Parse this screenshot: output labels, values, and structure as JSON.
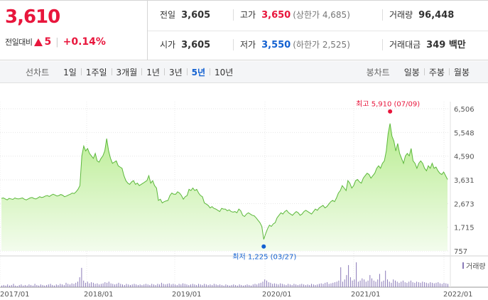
{
  "quote": {
    "current_price": "3,610",
    "change_label": "전일대비",
    "change_value": "5",
    "change_rate": "+0.14%",
    "prev_close_label": "전일",
    "prev_close": "3,605",
    "open_label": "시가",
    "open": "3,605",
    "high_label": "고가",
    "high": "3,650",
    "upper_limit": "(상한가 4,685)",
    "low_label": "저가",
    "low": "3,550",
    "lower_limit": "(하한가 2,525)",
    "volume_label": "거래량",
    "volume": "96,448",
    "amount_label": "거래대금",
    "amount": "349 백만"
  },
  "toolbar": {
    "line_chart_title": "선차트",
    "periods": [
      "1일",
      "1주일",
      "3개월",
      "1년",
      "3년",
      "5년",
      "10년"
    ],
    "active_period": "5년",
    "candle_chart_title": "봉차트",
    "candle_periods": [
      "일봉",
      "주봉",
      "월봉"
    ]
  },
  "chart_data": {
    "type": "area",
    "max_label": "최고 5,910 (07/09)",
    "min_label": "최저 1,225 (03/27)",
    "volume_legend": "거래량",
    "y_ticks": [
      "6,506",
      "5,548",
      "4,590",
      "3,631",
      "2,673",
      "1,715",
      "757"
    ],
    "y_tick_values": [
      6506,
      5548,
      4590,
      3631,
      2673,
      1715,
      757
    ],
    "x_ticks": [
      "2017/01",
      "2018/01",
      "2019/01",
      "2020/01",
      "2021/01",
      "2022/01"
    ],
    "ylim": [
      757,
      6506
    ],
    "colors": {
      "line": "#5cb83b",
      "fill_top": "#b7ec8e",
      "fill_bottom": "#f3fced",
      "max": "#e8163c",
      "min": "#1361d1",
      "volume": "#8a7ab8"
    },
    "series": [
      {
        "values": [
          2880,
          2900,
          2860,
          2820,
          2880,
          2860,
          2840,
          2900,
          2870,
          2860,
          2880,
          2900,
          2850,
          2820,
          2860,
          2900,
          2920,
          2880,
          2860,
          2900,
          2950,
          2920,
          2940,
          2980,
          3000,
          2960,
          3010,
          3050,
          3020,
          2980,
          3000,
          3040,
          3010,
          2950,
          2980,
          3020,
          3050,
          3100,
          3080,
          3150,
          3250,
          3400,
          4600,
          5000,
          4800,
          4900,
          4700,
          4600,
          4500,
          4700,
          4400,
          4350,
          4500,
          4600,
          4800,
          5300,
          4800,
          4500,
          4300,
          4350,
          4400,
          4200,
          4150,
          4100,
          3800,
          3600,
          3500,
          3450,
          3550,
          3600,
          3450,
          3500,
          3400,
          3450,
          3500,
          3550,
          3600,
          3800,
          3500,
          3600,
          3400,
          3300,
          2800,
          2850,
          2700,
          2750,
          2780,
          2800,
          3000,
          3100,
          3050,
          3050,
          3150,
          3100,
          3000,
          2850,
          2950,
          3000,
          3250,
          3200,
          3300,
          3200,
          3250,
          3100,
          3000,
          2950,
          2700,
          2650,
          2600,
          2500,
          2550,
          2480,
          2450,
          2400,
          2350,
          2480,
          2450,
          2450,
          2380,
          2420,
          2350,
          2330,
          2350,
          2300,
          2450,
          2380,
          2200,
          2150,
          2250,
          2300,
          2250,
          2200,
          2180,
          2100,
          2000,
          1900,
          1750,
          1225,
          1450,
          1650,
          1800,
          1750,
          1850,
          1900,
          2100,
          2200,
          2300,
          2250,
          2350,
          2400,
          2300,
          2250,
          2200,
          2280,
          2350,
          2300,
          2200,
          2250,
          2350,
          2400,
          2350,
          2300,
          2250,
          2350,
          2450,
          2400,
          2500,
          2550,
          2600,
          2500,
          2550,
          2650,
          2750,
          2800,
          2750,
          2900,
          3100,
          3200,
          3400,
          3300,
          3200,
          3600,
          3500,
          3300,
          3400,
          3600,
          3650,
          3550,
          3500,
          3700,
          3800,
          3900,
          3850,
          3700,
          3800,
          3900,
          4100,
          4200,
          4100,
          4300,
          4400,
          4800,
          5500,
          5910,
          5400,
          5200,
          4800,
          5100,
          4700,
          4500,
          4300,
          4600,
          4700,
          4600,
          4900,
          4400,
          4300,
          4100,
          4300,
          4400,
          4300,
          4100,
          4000,
          4200,
          4100,
          4300,
          4100,
          4150,
          4000,
          3900,
          3850,
          3950,
          3800,
          3650
        ]
      }
    ],
    "volume": [
      3,
      4,
      3,
      5,
      3,
      4,
      6,
      3,
      2,
      4,
      5,
      3,
      4,
      3,
      5,
      4,
      3,
      6,
      4,
      3,
      5,
      4,
      3,
      4,
      5,
      6,
      4,
      3,
      5,
      4,
      6,
      5,
      4,
      8,
      6,
      5,
      7,
      6,
      8,
      10,
      18,
      35,
      12,
      8,
      10,
      7,
      9,
      8,
      6,
      7,
      5,
      6,
      7,
      9,
      8,
      10,
      7,
      6,
      5,
      6,
      8,
      6,
      5,
      4,
      6,
      5,
      4,
      5,
      6,
      5,
      4,
      5,
      4,
      5,
      6,
      5,
      4,
      6,
      5,
      4,
      6,
      5,
      8,
      6,
      5,
      6,
      7,
      5,
      6,
      5,
      4,
      6,
      5,
      7,
      6,
      5,
      4,
      5,
      6,
      5,
      4,
      6,
      5,
      4,
      6,
      5,
      4,
      5,
      4,
      6,
      5,
      4,
      5,
      4,
      3,
      5,
      4,
      3,
      4,
      5,
      4,
      3,
      5,
      4,
      3,
      4,
      5,
      4,
      3,
      5,
      6,
      5,
      7,
      8,
      10,
      14,
      12,
      9,
      8,
      6,
      7,
      6,
      5,
      7,
      6,
      5,
      4,
      6,
      5,
      4,
      6,
      5,
      4,
      5,
      6,
      5,
      4,
      5,
      4,
      6,
      5,
      4,
      5,
      6,
      7,
      6,
      8,
      9,
      6,
      7,
      8,
      9,
      10,
      12,
      36,
      10,
      14,
      22,
      40,
      18,
      12,
      14,
      45,
      10,
      12,
      16,
      14,
      10,
      12,
      22,
      16,
      12,
      10,
      14,
      24,
      10,
      12,
      30,
      14,
      10,
      8,
      14,
      12,
      10,
      8,
      10,
      12,
      9,
      8,
      10,
      12,
      9,
      8,
      10,
      9,
      8,
      10,
      9,
      8,
      7,
      9,
      8,
      7,
      8,
      9,
      7,
      6,
      8,
      7,
      6
    ]
  }
}
